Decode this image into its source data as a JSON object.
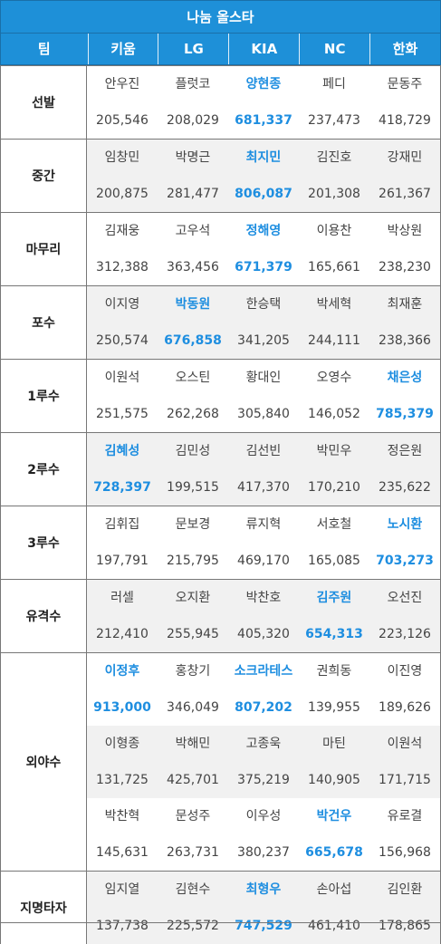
{
  "title": "나눔 올스타",
  "header": {
    "team_label": "팀",
    "teams": [
      "키움",
      "LG",
      "KIA",
      "NC",
      "한화"
    ]
  },
  "colors": {
    "accent": "#1e90d8",
    "highlight": "#1e8ee0",
    "alt_row": "#f1f1f1"
  },
  "groups": [
    {
      "position": "선발",
      "entries": [
        {
          "names": [
            "안우진",
            "플럿코",
            "양현종",
            "페디",
            "문동주"
          ],
          "votes": [
            "205,546",
            "208,029",
            "681,337",
            "237,473",
            "418,729"
          ],
          "winner": 2
        }
      ]
    },
    {
      "position": "중간",
      "entries": [
        {
          "names": [
            "임창민",
            "박명근",
            "최지민",
            "김진호",
            "강재민"
          ],
          "votes": [
            "200,875",
            "281,477",
            "806,087",
            "201,308",
            "261,367"
          ],
          "winner": 2
        }
      ]
    },
    {
      "position": "마무리",
      "entries": [
        {
          "names": [
            "김재웅",
            "고우석",
            "정해영",
            "이용찬",
            "박상원"
          ],
          "votes": [
            "312,388",
            "363,456",
            "671,379",
            "165,661",
            "238,230"
          ],
          "winner": 2
        }
      ]
    },
    {
      "position": "포수",
      "entries": [
        {
          "names": [
            "이지영",
            "박동원",
            "한승택",
            "박세혁",
            "최재훈"
          ],
          "votes": [
            "250,574",
            "676,858",
            "341,205",
            "244,111",
            "238,366"
          ],
          "winner": 1
        }
      ]
    },
    {
      "position": "1루수",
      "entries": [
        {
          "names": [
            "이원석",
            "오스틴",
            "황대인",
            "오영수",
            "채은성"
          ],
          "votes": [
            "251,575",
            "262,268",
            "305,840",
            "146,052",
            "785,379"
          ],
          "winner": 4
        }
      ]
    },
    {
      "position": "2루수",
      "entries": [
        {
          "names": [
            "김혜성",
            "김민성",
            "김선빈",
            "박민우",
            "정은원"
          ],
          "votes": [
            "728,397",
            "199,515",
            "417,370",
            "170,210",
            "235,622"
          ],
          "winner": 0
        }
      ]
    },
    {
      "position": "3루수",
      "entries": [
        {
          "names": [
            "김휘집",
            "문보경",
            "류지혁",
            "서호철",
            "노시환"
          ],
          "votes": [
            "197,791",
            "215,795",
            "469,170",
            "165,085",
            "703,273"
          ],
          "winner": 4
        }
      ]
    },
    {
      "position": "유격수",
      "entries": [
        {
          "names": [
            "러셀",
            "오지환",
            "박찬호",
            "김주원",
            "오선진"
          ],
          "votes": [
            "212,410",
            "255,945",
            "405,320",
            "654,313",
            "223,126"
          ],
          "winner": 3
        }
      ]
    },
    {
      "position": "외야수",
      "entries": [
        {
          "names": [
            "이정후",
            "홍창기",
            "소크라테스",
            "권희동",
            "이진영"
          ],
          "votes": [
            "913,000",
            "346,049",
            "807,202",
            "139,955",
            "189,626"
          ],
          "winner_multi": [
            0,
            2
          ]
        },
        {
          "names": [
            "이형종",
            "박해민",
            "고종욱",
            "마틴",
            "이원석"
          ],
          "votes": [
            "131,725",
            "425,701",
            "375,219",
            "140,905",
            "171,715"
          ],
          "winner_multi": []
        },
        {
          "names": [
            "박찬혁",
            "문성주",
            "이우성",
            "박건우",
            "유로결"
          ],
          "votes": [
            "145,631",
            "263,731",
            "380,237",
            "665,678",
            "156,968"
          ],
          "winner_multi": [
            3
          ]
        }
      ]
    },
    {
      "position": "지명타자",
      "entries": [
        {
          "names": [
            "임지열",
            "김현수",
            "최형우",
            "손아섭",
            "김인환"
          ],
          "votes": [
            "137,738",
            "225,572",
            "747,529",
            "461,410",
            "178,865"
          ],
          "winner": 2
        }
      ]
    }
  ]
}
